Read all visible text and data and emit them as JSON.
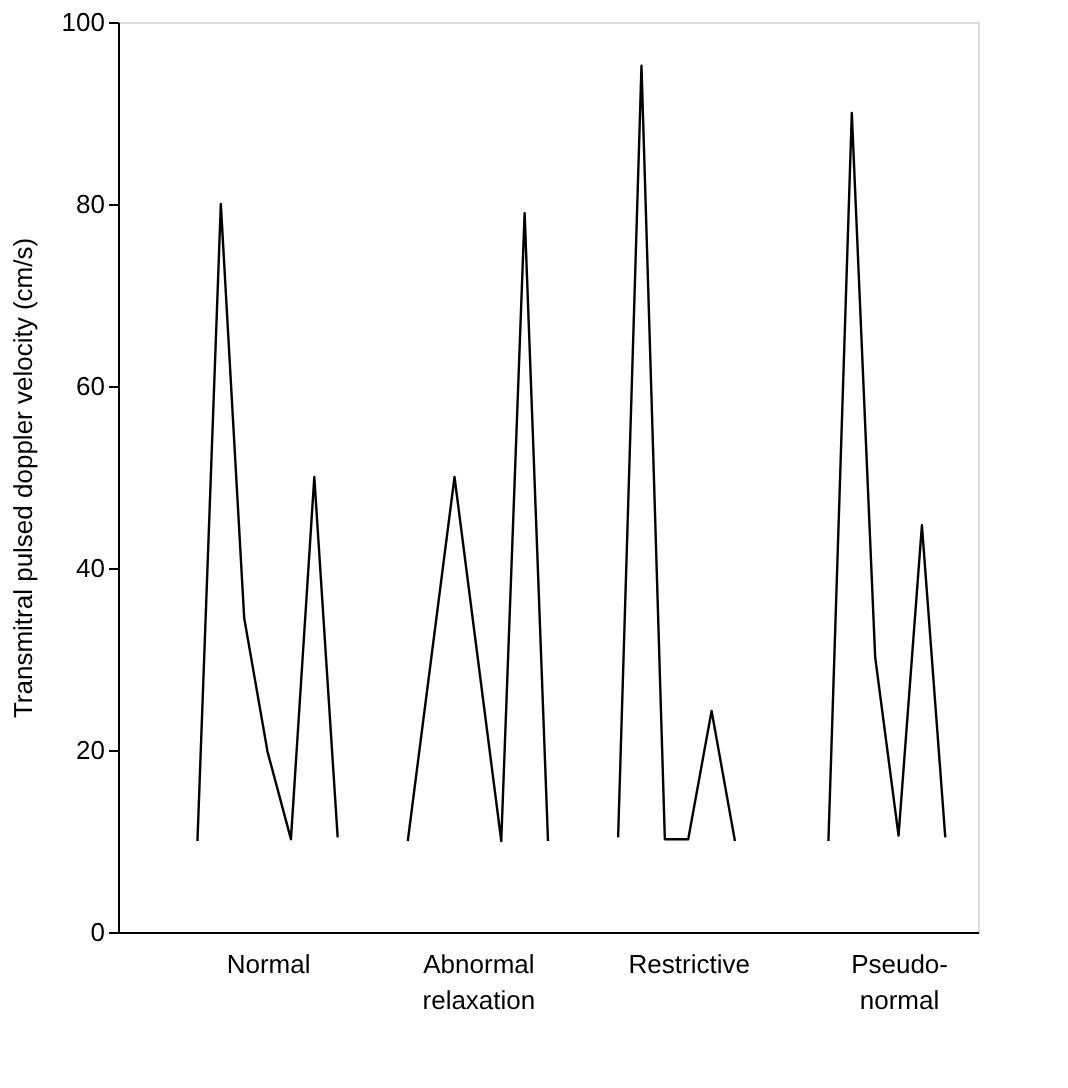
{
  "chart_data": {
    "type": "line",
    "ylabel": "Transmitral pulsed doppler velocity (cm/s)",
    "categories": [
      null,
      null,
      null,
      null,
      null,
      null,
      "Normal",
      null,
      null,
      null,
      null,
      null,
      null,
      null,
      null,
      "Abnormal\nrelaxation",
      null,
      null,
      null,
      null,
      null,
      null,
      null,
      null,
      "Restrictive",
      null,
      null,
      null,
      null,
      null,
      null,
      null,
      null,
      "Pseudo-\nnormal",
      null,
      null,
      null
    ],
    "ylim": [
      0,
      100
    ],
    "yticks": [
      0,
      20,
      40,
      60,
      80,
      100
    ],
    "grid": false,
    "legend": false,
    "marker": "none",
    "line_style": "solid",
    "series": [
      {
        "color": "#000000",
        "values": [
          null,
          null,
          null,
          10,
          80,
          34.5,
          19.8,
          10.2,
          50,
          10.4,
          null,
          null,
          null,
          null,
          null,
          null,
          null,
          null,
          null,
          null,
          null,
          null,
          null,
          null,
          null,
          null,
          null,
          null,
          null,
          null,
          null,
          null,
          null,
          null,
          null,
          null,
          null
        ]
      },
      {
        "color": "#000000",
        "values": [
          null,
          null,
          null,
          null,
          null,
          null,
          null,
          null,
          null,
          null,
          null,
          null,
          10,
          30,
          50,
          30,
          10,
          79,
          10,
          null,
          null,
          null,
          null,
          null,
          null,
          null,
          null,
          null,
          null,
          null,
          null,
          null,
          null,
          null,
          null,
          null,
          null
        ]
      },
      {
        "color": "#000000",
        "values": [
          null,
          null,
          null,
          null,
          null,
          null,
          null,
          null,
          null,
          null,
          null,
          null,
          null,
          null,
          null,
          null,
          null,
          null,
          null,
          null,
          null,
          10.4,
          95.2,
          10.2,
          10.2,
          24.3,
          10,
          null,
          null,
          null,
          null,
          null,
          null,
          null,
          null,
          null,
          null
        ]
      },
      {
        "color": "#000000",
        "values": [
          null,
          null,
          null,
          null,
          null,
          null,
          null,
          null,
          null,
          null,
          null,
          null,
          null,
          null,
          null,
          null,
          null,
          null,
          null,
          null,
          null,
          null,
          null,
          null,
          null,
          null,
          null,
          null,
          null,
          null,
          10,
          90,
          30.2,
          10.6,
          44.7,
          10.4,
          null
        ]
      }
    ]
  }
}
